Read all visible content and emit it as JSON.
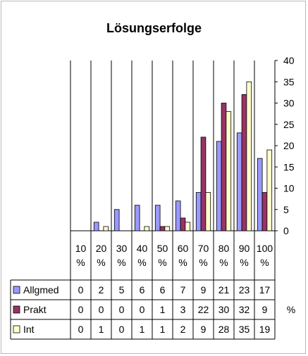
{
  "chart_data": {
    "type": "bar",
    "title": "Lösungserfolge",
    "categories": [
      [
        "10",
        "%"
      ],
      [
        "20",
        "%"
      ],
      [
        "30",
        "%"
      ],
      [
        "40",
        "%"
      ],
      [
        "50",
        "%"
      ],
      [
        "60",
        "%"
      ],
      [
        "70",
        "%"
      ],
      [
        "80",
        "%"
      ],
      [
        "90",
        "%"
      ],
      [
        "100",
        "%"
      ]
    ],
    "series": [
      {
        "name": "Allgmed",
        "values": [
          0,
          2,
          5,
          6,
          6,
          7,
          9,
          21,
          23,
          17
        ]
      },
      {
        "name": "Prakt",
        "values": [
          0,
          0,
          0,
          0,
          1,
          3,
          22,
          30,
          32,
          9
        ]
      },
      {
        "name": "Int",
        "values": [
          0,
          1,
          0,
          1,
          1,
          2,
          9,
          28,
          35,
          19
        ]
      }
    ],
    "ylim": [
      0,
      40
    ],
    "yticks": [
      0,
      5,
      10,
      15,
      20,
      25,
      30,
      35,
      40
    ],
    "table_unit": "%",
    "colors": [
      "#9999ff",
      "#993366",
      "#ffffcc"
    ],
    "y_axis_position": "right",
    "grid": false,
    "legend": "data-table"
  }
}
